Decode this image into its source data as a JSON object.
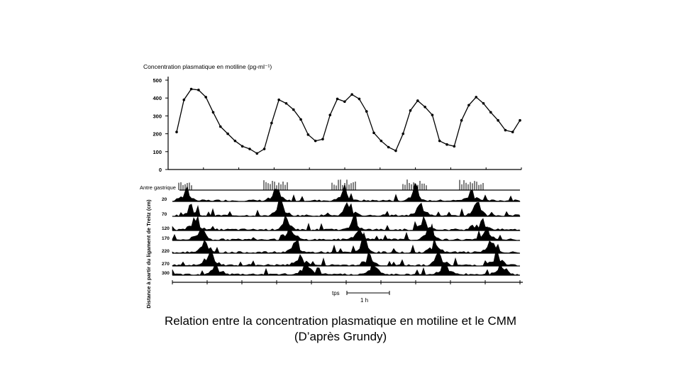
{
  "slide": {
    "caption_line1": "Relation entre la concentration plasmatique en motiline et le CMM",
    "caption_line2": "(D’après Grundy)"
  },
  "chart_data": [
    {
      "type": "line",
      "title": "Concentration plasmatique en motiline (pg-ml⁻¹)",
      "xlabel": "",
      "ylabel": "",
      "ylim": [
        0,
        500
      ],
      "yticks": [
        0,
        100,
        200,
        300,
        400,
        500
      ],
      "grid": false,
      "legend": "none",
      "series": [
        {
          "values": [
            210,
            390,
            450,
            445,
            405,
            320,
            240,
            200,
            160,
            130,
            115,
            90,
            115,
            260,
            390,
            370,
            335,
            280,
            195,
            160,
            170,
            305,
            395,
            380,
            420,
            395,
            325,
            205,
            160,
            125,
            105,
            200,
            330,
            385,
            350,
            305,
            160,
            140,
            130,
            275,
            360,
            405,
            370,
            320,
            275,
            220,
            210,
            275
          ]
        }
      ]
    },
    {
      "type": "line",
      "title": "",
      "row_labels": [
        "Antre gastrique",
        "20",
        "70",
        "120",
        "170",
        "220",
        "270",
        "300"
      ],
      "ylabel": "Distance à partir du ligament de Treitz (cm)",
      "time_label": "tps",
      "scale_label": "1 h"
    }
  ]
}
